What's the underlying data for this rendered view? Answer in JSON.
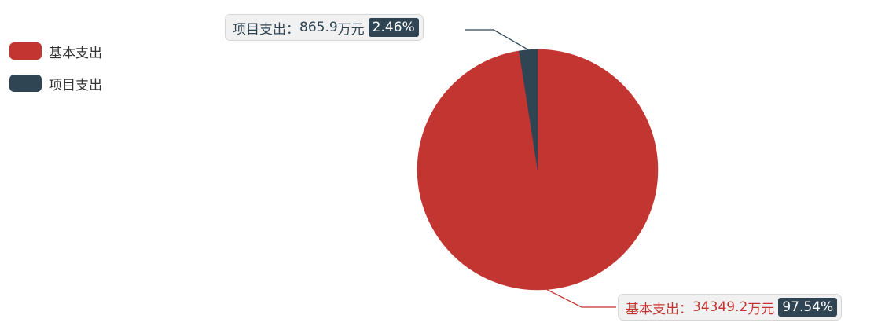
{
  "chart_data": {
    "type": "pie",
    "title": "",
    "unit": "万元",
    "slices": [
      {
        "name": "基本支出",
        "value": 34349.2,
        "value_label": "34349.2",
        "percent": "97.54%",
        "color": "#c23531"
      },
      {
        "name": "项目支出",
        "value": 865.9,
        "value_label": "865.9",
        "percent": "2.46%",
        "color": "#2f4554"
      }
    ],
    "legend_position": "top-left",
    "label_separator": "："
  }
}
